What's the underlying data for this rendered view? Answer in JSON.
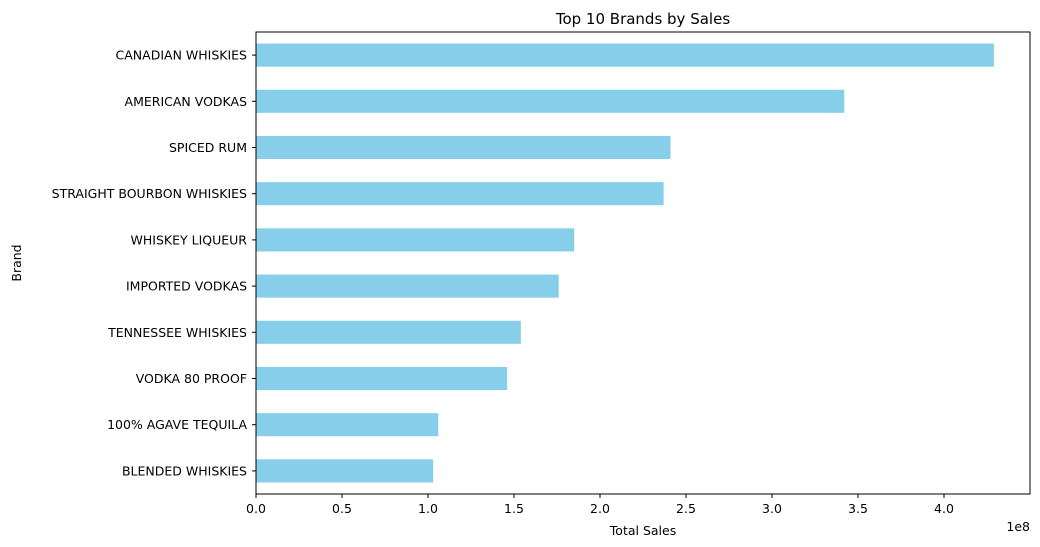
{
  "chart_data": {
    "type": "bar",
    "orientation": "horizontal",
    "title": "Top 10 Brands by Sales",
    "xlabel": "Total Sales",
    "ylabel": "Brand",
    "x_offset_label": "1e8",
    "x_scale_factor": 100000000,
    "xlim": [
      0,
      4.5
    ],
    "xticks": [
      "0.0",
      "0.5",
      "1.0",
      "1.5",
      "2.0",
      "2.5",
      "3.0",
      "3.5",
      "4.0"
    ],
    "categories": [
      "CANADIAN WHISKIES",
      "AMERICAN VODKAS",
      "SPICED RUM",
      "STRAIGHT BOURBON WHISKIES",
      "WHISKEY LIQUEUR",
      "IMPORTED VODKAS",
      "TENNESSEE WHISKIES",
      "VODKA 80 PROOF",
      "100% AGAVE TEQUILA",
      "BLENDED WHISKIES"
    ],
    "values": [
      429000000,
      342000000,
      241000000,
      237000000,
      185000000,
      176000000,
      154000000,
      146000000,
      106000000,
      103000000
    ],
    "bar_color": "#87ceeb",
    "grid": false,
    "legend": "none"
  }
}
